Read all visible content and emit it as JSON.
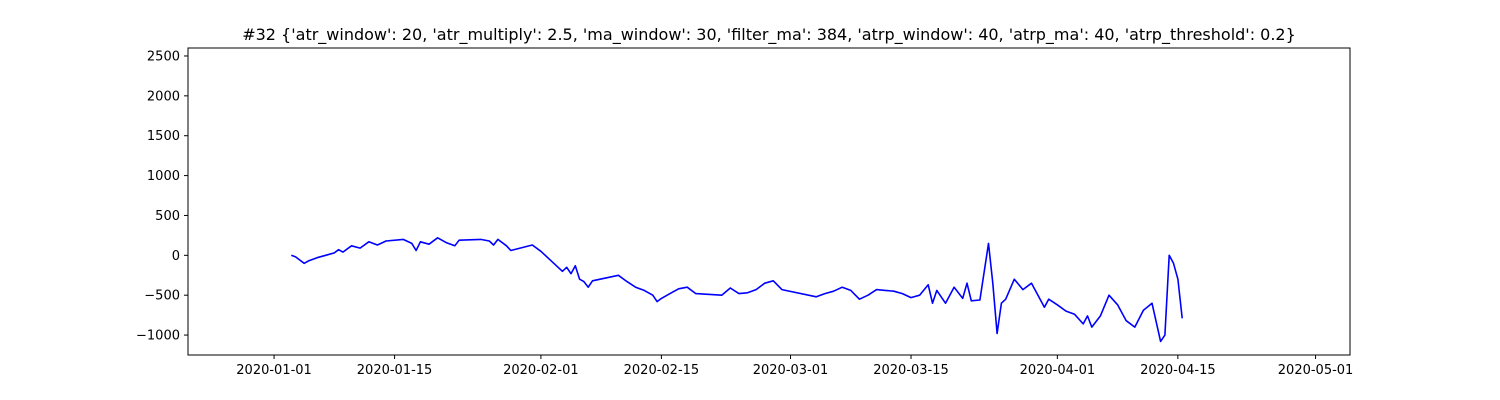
{
  "chart_data": {
    "type": "line",
    "title": "#32 {'atr_window': 20, 'atr_multiply': 2.5, 'ma_window': 30, 'filter_ma': 384, 'atrp_window': 40, 'atrp_ma': 40, 'atrp_threshold': 0.2}",
    "xlabel": "",
    "ylabel": "",
    "xlim": [
      "2019-12-22",
      "2020-05-05"
    ],
    "ylim": [
      -1250,
      2600
    ],
    "grid": false,
    "x_ticks": [
      "2020-01-01",
      "2020-01-15",
      "2020-02-01",
      "2020-02-15",
      "2020-03-01",
      "2020-03-15",
      "2020-04-01",
      "2020-04-15",
      "2020-05-01"
    ],
    "y_ticks": [
      -1000,
      -500,
      0,
      500,
      1000,
      1500,
      2000,
      2500
    ],
    "y_tick_labels": [
      "−1000",
      "−500",
      "0",
      "500",
      "1000",
      "1500",
      "2000",
      "2500"
    ],
    "series": [
      {
        "color": "#0000ff",
        "points": [
          [
            "2020-01-03",
            0
          ],
          [
            "2020-01-03T12:00",
            -20
          ],
          [
            "2020-01-04",
            -60
          ],
          [
            "2020-01-04T12:00",
            -100
          ],
          [
            "2020-01-05",
            -70
          ],
          [
            "2020-01-06",
            -30
          ],
          [
            "2020-01-07",
            0
          ],
          [
            "2020-01-08",
            30
          ],
          [
            "2020-01-08T12:00",
            70
          ],
          [
            "2020-01-09",
            40
          ],
          [
            "2020-01-10",
            120
          ],
          [
            "2020-01-11",
            90
          ],
          [
            "2020-01-12",
            170
          ],
          [
            "2020-01-13",
            130
          ],
          [
            "2020-01-14",
            180
          ],
          [
            "2020-01-16",
            200
          ],
          [
            "2020-01-17",
            150
          ],
          [
            "2020-01-17T12:00",
            60
          ],
          [
            "2020-01-18",
            170
          ],
          [
            "2020-01-19",
            140
          ],
          [
            "2020-01-20",
            220
          ],
          [
            "2020-01-21",
            160
          ],
          [
            "2020-01-22",
            120
          ],
          [
            "2020-01-22T12:00",
            190
          ],
          [
            "2020-01-25",
            200
          ],
          [
            "2020-01-26",
            180
          ],
          [
            "2020-01-26T12:00",
            130
          ],
          [
            "2020-01-27",
            200
          ],
          [
            "2020-01-28",
            120
          ],
          [
            "2020-01-28T12:00",
            60
          ],
          [
            "2020-01-31",
            130
          ],
          [
            "2020-02-01",
            50
          ],
          [
            "2020-02-02",
            -50
          ],
          [
            "2020-02-03",
            -150
          ],
          [
            "2020-02-03T12:00",
            -200
          ],
          [
            "2020-02-04",
            -150
          ],
          [
            "2020-02-04T12:00",
            -230
          ],
          [
            "2020-02-05",
            -130
          ],
          [
            "2020-02-05T12:00",
            -300
          ],
          [
            "2020-02-06",
            -330
          ],
          [
            "2020-02-06T12:00",
            -400
          ],
          [
            "2020-02-07",
            -320
          ],
          [
            "2020-02-10",
            -250
          ],
          [
            "2020-02-11",
            -330
          ],
          [
            "2020-02-12",
            -400
          ],
          [
            "2020-02-13",
            -440
          ],
          [
            "2020-02-14",
            -500
          ],
          [
            "2020-02-14T12:00",
            -580
          ],
          [
            "2020-02-15",
            -540
          ],
          [
            "2020-02-16",
            -480
          ],
          [
            "2020-02-17",
            -420
          ],
          [
            "2020-02-18",
            -400
          ],
          [
            "2020-02-19",
            -480
          ],
          [
            "2020-02-22",
            -500
          ],
          [
            "2020-02-23",
            -410
          ],
          [
            "2020-02-24",
            -480
          ],
          [
            "2020-02-25",
            -470
          ],
          [
            "2020-02-26",
            -430
          ],
          [
            "2020-02-27",
            -350
          ],
          [
            "2020-02-28",
            -320
          ],
          [
            "2020-02-29",
            -430
          ],
          [
            "2020-03-04",
            -520
          ],
          [
            "2020-03-05",
            -480
          ],
          [
            "2020-03-06",
            -450
          ],
          [
            "2020-03-07",
            -400
          ],
          [
            "2020-03-08",
            -440
          ],
          [
            "2020-03-09",
            -550
          ],
          [
            "2020-03-10",
            -500
          ],
          [
            "2020-03-11",
            -430
          ],
          [
            "2020-03-12",
            -440
          ],
          [
            "2020-03-13",
            -450
          ],
          [
            "2020-03-14",
            -480
          ],
          [
            "2020-03-15",
            -530
          ],
          [
            "2020-03-16",
            -500
          ],
          [
            "2020-03-17",
            -370
          ],
          [
            "2020-03-17T12:00",
            -600
          ],
          [
            "2020-03-18",
            -440
          ],
          [
            "2020-03-19",
            -600
          ],
          [
            "2020-03-20",
            -400
          ],
          [
            "2020-03-21",
            -540
          ],
          [
            "2020-03-21T12:00",
            -350
          ],
          [
            "2020-03-22",
            -570
          ],
          [
            "2020-03-23",
            -560
          ],
          [
            "2020-03-24",
            150
          ],
          [
            "2020-03-24T12:00",
            -350
          ],
          [
            "2020-03-25",
            -980
          ],
          [
            "2020-03-25T12:00",
            -600
          ],
          [
            "2020-03-26",
            -550
          ],
          [
            "2020-03-27",
            -300
          ],
          [
            "2020-03-28",
            -430
          ],
          [
            "2020-03-29",
            -350
          ],
          [
            "2020-03-30",
            -550
          ],
          [
            "2020-03-30T12:00",
            -650
          ],
          [
            "2020-03-31",
            -550
          ],
          [
            "2020-04-01",
            -620
          ],
          [
            "2020-04-02",
            -700
          ],
          [
            "2020-04-03",
            -740
          ],
          [
            "2020-04-04",
            -860
          ],
          [
            "2020-04-04T12:00",
            -760
          ],
          [
            "2020-04-05",
            -900
          ],
          [
            "2020-04-06",
            -760
          ],
          [
            "2020-04-07",
            -500
          ],
          [
            "2020-04-08",
            -620
          ],
          [
            "2020-04-09",
            -820
          ],
          [
            "2020-04-10",
            -900
          ],
          [
            "2020-04-11",
            -690
          ],
          [
            "2020-04-12",
            -600
          ],
          [
            "2020-04-13",
            -1080
          ],
          [
            "2020-04-13T12:00",
            -1000
          ],
          [
            "2020-04-14",
            0
          ],
          [
            "2020-04-14T12:00",
            -100
          ],
          [
            "2020-04-15",
            -300
          ],
          [
            "2020-04-15T12:00",
            -790
          ]
        ]
      }
    ]
  }
}
